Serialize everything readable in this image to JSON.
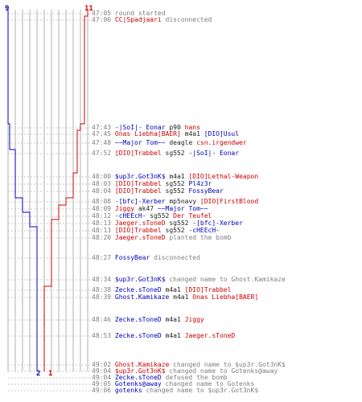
{
  "score": {
    "top_left": "9",
    "top_right": "11",
    "bottom_blue": "2",
    "bottom_red": "1"
  },
  "colors": {
    "blue": "#0000bb",
    "red": "#cc0000",
    "grey": "#7f7f7f",
    "grid": "#b0b0b0"
  },
  "events": [
    {
      "time": "47:05",
      "parts": [
        {
          "t": "round started",
          "c": "w"
        }
      ]
    },
    {
      "time": "47:06",
      "parts": [
        {
          "t": "CC|Spadjaari",
          "c": "r"
        },
        {
          "t": " disconnected",
          "c": "w"
        }
      ]
    },
    {
      "time": "47:43",
      "parts": [
        {
          "t": "-|SoI|- Eonar",
          "c": "b"
        },
        {
          "t": " p90 ",
          "c": "k"
        },
        {
          "t": "hans",
          "c": "r"
        }
      ]
    },
    {
      "time": "47:45",
      "parts": [
        {
          "t": "Onas Liebha[BAER]",
          "c": "r"
        },
        {
          "t": " m4a1 ",
          "c": "k"
        },
        {
          "t": "[DIO]Usul",
          "c": "b"
        }
      ]
    },
    {
      "time": "47:48",
      "parts": [
        {
          "t": "~~Major Tom~~",
          "c": "b"
        },
        {
          "t": " deagle ",
          "c": "k"
        },
        {
          "t": "csn.irgendwer",
          "c": "r"
        }
      ]
    },
    {
      "time": "47:52",
      "parts": [
        {
          "t": "[DIO]Trabbel",
          "c": "r"
        },
        {
          "t": " sg552 ",
          "c": "k"
        },
        {
          "t": "-|SoI|- Eonar",
          "c": "b"
        }
      ]
    },
    {
      "time": "48:00",
      "parts": [
        {
          "t": "$up3r.Got3nK$",
          "c": "b"
        },
        {
          "t": " m4a1 ",
          "c": "k"
        },
        {
          "t": "[DIO]Lethal-Weapon",
          "c": "r"
        }
      ]
    },
    {
      "time": "48:03",
      "parts": [
        {
          "t": "[DIO]Trabbel",
          "c": "r"
        },
        {
          "t": " sg552 ",
          "c": "k"
        },
        {
          "t": "Pl4z3r",
          "c": "b"
        }
      ]
    },
    {
      "time": "48:04",
      "parts": [
        {
          "t": "[DIO]Trabbel",
          "c": "r"
        },
        {
          "t": " sg552 ",
          "c": "k"
        },
        {
          "t": "FossyBear",
          "c": "b"
        }
      ]
    },
    {
      "time": "48:08",
      "parts": [
        {
          "t": "-[bfc]-Xerber",
          "c": "b"
        },
        {
          "t": " mp5navy ",
          "c": "k"
        },
        {
          "t": "[DIO]FirstBlood",
          "c": "r"
        }
      ]
    },
    {
      "time": "48:09",
      "parts": [
        {
          "t": "Jiggy",
          "c": "r"
        },
        {
          "t": " ak47 ",
          "c": "k"
        },
        {
          "t": "~~Major Tom~~",
          "c": "b"
        }
      ]
    },
    {
      "time": "48:12",
      "parts": [
        {
          "t": "-cHEEcH-",
          "c": "b"
        },
        {
          "t": " sg552 ",
          "c": "k"
        },
        {
          "t": "Der Teufel",
          "c": "r"
        }
      ]
    },
    {
      "time": "48:13",
      "parts": [
        {
          "t": "Jaeger.sToneD",
          "c": "r"
        },
        {
          "t": " sg552 ",
          "c": "k"
        },
        {
          "t": "-[bfc]-Xerber",
          "c": "b"
        }
      ]
    },
    {
      "time": "48:13",
      "parts": [
        {
          "t": "[DIO]Trabbel",
          "c": "r"
        },
        {
          "t": " sg552 ",
          "c": "k"
        },
        {
          "t": "-cHEEcH-",
          "c": "b"
        }
      ]
    },
    {
      "time": "48:20",
      "parts": [
        {
          "t": "Jaeger.sToneD",
          "c": "r"
        },
        {
          "t": " planted the bomb",
          "c": "w"
        }
      ]
    },
    {
      "time": "48:27",
      "parts": [
        {
          "t": "FossyBear",
          "c": "b"
        },
        {
          "t": " disconnected",
          "c": "w"
        }
      ]
    },
    {
      "time": "48:34",
      "parts": [
        {
          "t": "$up3r.Got3nK$",
          "c": "b"
        },
        {
          "t": " changed name to Ghost.Kamikaze",
          "c": "w"
        }
      ]
    },
    {
      "time": "48:38",
      "parts": [
        {
          "t": "Zecke.sToneD",
          "c": "b"
        },
        {
          "t": " m4a1 ",
          "c": "k"
        },
        {
          "t": "[DIO]Trabbel",
          "c": "r"
        }
      ]
    },
    {
      "time": "48:39",
      "parts": [
        {
          "t": "Ghost.Kamikaze",
          "c": "b"
        },
        {
          "t": " m4a1 ",
          "c": "k"
        },
        {
          "t": "Onas Liebha[BAER]",
          "c": "r"
        }
      ]
    },
    {
      "time": "48:46",
      "parts": [
        {
          "t": "Zecke.sToneD",
          "c": "b"
        },
        {
          "t": " m4a1 ",
          "c": "k"
        },
        {
          "t": "Jiggy",
          "c": "r"
        }
      ]
    },
    {
      "time": "48:53",
      "parts": [
        {
          "t": "Zecke.sToneD",
          "c": "b"
        },
        {
          "t": " m4a1 ",
          "c": "k"
        },
        {
          "t": "Jaeger.sToneD",
          "c": "r"
        }
      ]
    },
    {
      "time": "49:02",
      "parts": [
        {
          "t": "Ghost.Kamikaze",
          "c": "r"
        },
        {
          "t": " changed name to $up3r.Got3nK$",
          "c": "w"
        }
      ]
    },
    {
      "time": "49:04",
      "parts": [
        {
          "t": "$up3r.Got3nK$",
          "c": "r"
        },
        {
          "t": " changed name to Gotenks@away",
          "c": "w"
        }
      ]
    },
    {
      "time": "49:04",
      "parts": [
        {
          "t": "Zecke.sToneD",
          "c": "b"
        },
        {
          "t": " defused the bomb",
          "c": "w"
        }
      ]
    },
    {
      "time": "49:05",
      "parts": [
        {
          "t": "Gotenks@away",
          "c": "b"
        },
        {
          "t": " changed name to Gotenks",
          "c": "w"
        }
      ]
    },
    {
      "time": "49:06",
      "parts": [
        {
          "t": "gotenks",
          "c": "b"
        },
        {
          "t": " changed name to $up3r.Got3nK$",
          "c": "w"
        }
      ]
    }
  ]
}
